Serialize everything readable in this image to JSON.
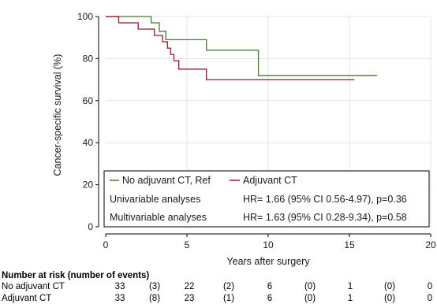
{
  "chart_data": {
    "type": "line",
    "xlabel": "Years after surgery",
    "ylabel": "Cancer-specific survival (%)",
    "xlim": [
      0,
      20
    ],
    "ylim": [
      0,
      100
    ],
    "x_ticks": [
      "0",
      "5",
      "10",
      "15",
      "20"
    ],
    "y_ticks": [
      "0",
      "20",
      "40",
      "60",
      "80",
      "100"
    ],
    "grid": true,
    "step": true,
    "series": [
      {
        "name": "No adjuvant CT, Ref",
        "color": "#4c7a34",
        "x": [
          0,
          2.8,
          2.8,
          3.3,
          3.3,
          3.7,
          3.7,
          6.2,
          6.2,
          9.4,
          9.4,
          16.7
        ],
        "y": [
          100,
          100,
          97,
          97,
          93,
          93,
          89,
          89,
          84,
          84,
          72,
          72
        ]
      },
      {
        "name": "Adjuvant CT",
        "color": "#8b1a2b",
        "x": [
          0,
          0.8,
          0.8,
          2.0,
          2.0,
          3.0,
          3.0,
          3.5,
          3.5,
          3.8,
          3.8,
          4.0,
          4.0,
          4.2,
          4.2,
          4.5,
          4.5,
          6.2,
          6.2,
          15.3
        ],
        "y": [
          100,
          100,
          97,
          97,
          94,
          94,
          91,
          91,
          88,
          88,
          85,
          85,
          82,
          82,
          79,
          79,
          75,
          75,
          70,
          70
        ]
      }
    ],
    "legend": {
      "placement": "bottom-inside",
      "entries": [
        "No adjuvant CT, Ref",
        "Adjuvant CT"
      ],
      "annotations": [
        {
          "label": "Univariable analyses",
          "text": "HR= 1.66 (95% CI 0.56-4.97), p=0.36"
        },
        {
          "label": "Multivariable analyses",
          "text": "HR= 1.63 (95% CI 0.28-9.34), p=0.58"
        }
      ]
    },
    "risk_table": {
      "title": "Number at risk (number of events)",
      "rows": [
        {
          "label": "No adjuvant CT",
          "values": [
            "33",
            "(3)",
            "22",
            "(2)",
            "6",
            "(0)",
            "1",
            "(0)",
            "0"
          ]
        },
        {
          "label": "Adjuvant CT",
          "values": [
            "33",
            "(8)",
            "23",
            "(1)",
            "6",
            "(0)",
            "1",
            "(0)",
            "0"
          ]
        }
      ]
    }
  }
}
